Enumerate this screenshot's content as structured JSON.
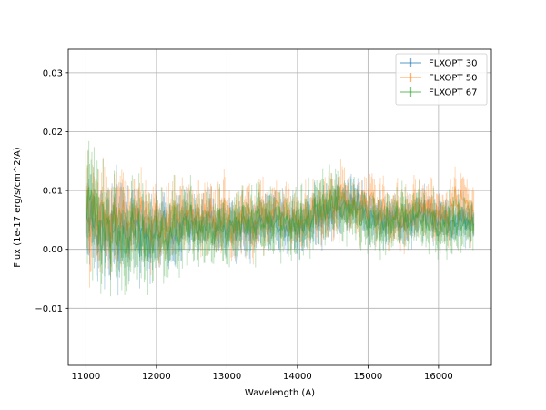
{
  "chart_data": {
    "type": "line",
    "xlabel": "Wavelength (A)",
    "ylabel": "Flux (1e-17 erg/s/cm^2/A)",
    "xlim": [
      10750,
      16750
    ],
    "ylim": [
      -0.0197,
      0.034
    ],
    "x_ticks": [
      11000,
      12000,
      13000,
      14000,
      15000,
      16000
    ],
    "x_tick_labels": [
      "11000",
      "12000",
      "13000",
      "14000",
      "15000",
      "16000"
    ],
    "y_ticks": [
      -0.01,
      0.0,
      0.01,
      0.02,
      0.03
    ],
    "y_tick_labels": [
      "−0.01",
      "0.00",
      "0.01",
      "0.02",
      "0.03"
    ],
    "grid": true,
    "legend": "upper-right",
    "series": [
      {
        "name": "FLXOPT 30",
        "color": "#1f77b4",
        "x": [
          11000,
          11250,
          11500,
          11750,
          12000,
          12250,
          12500,
          12750,
          13000,
          13250,
          13500,
          13750,
          14000,
          14250,
          14500,
          14750,
          15000,
          15250,
          15500,
          15750,
          16000,
          16250,
          16500
        ],
        "y": [
          0.006,
          0.003,
          0.002,
          0.004,
          0.003,
          0.004,
          0.004,
          0.004,
          0.004,
          0.004,
          0.005,
          0.005,
          0.004,
          0.006,
          0.007,
          0.008,
          0.006,
          0.005,
          0.005,
          0.006,
          0.005,
          0.005,
          0.005
        ],
        "y_spread": [
          0.008,
          0.008,
          0.009,
          0.007,
          0.006,
          0.006,
          0.005,
          0.005,
          0.005,
          0.005,
          0.005,
          0.005,
          0.005,
          0.005,
          0.005,
          0.005,
          0.004,
          0.004,
          0.004,
          0.004,
          0.004,
          0.004,
          0.004
        ]
      },
      {
        "name": "FLXOPT 50",
        "color": "#ff7f0e",
        "x": [
          11000,
          11250,
          11500,
          11750,
          12000,
          12250,
          12500,
          12750,
          13000,
          13250,
          13500,
          13750,
          14000,
          14250,
          14500,
          14750,
          15000,
          15250,
          15500,
          15750,
          16000,
          16250,
          16500
        ],
        "y": [
          0.005,
          0.006,
          0.005,
          0.005,
          0.004,
          0.005,
          0.006,
          0.005,
          0.005,
          0.005,
          0.006,
          0.006,
          0.005,
          0.006,
          0.008,
          0.008,
          0.007,
          0.006,
          0.006,
          0.007,
          0.006,
          0.008,
          0.008
        ],
        "y_spread": [
          0.009,
          0.009,
          0.008,
          0.007,
          0.007,
          0.006,
          0.006,
          0.006,
          0.006,
          0.006,
          0.006,
          0.005,
          0.005,
          0.005,
          0.006,
          0.005,
          0.005,
          0.005,
          0.005,
          0.005,
          0.005,
          0.005,
          0.005
        ]
      },
      {
        "name": "FLXOPT 67",
        "color": "#2ca02c",
        "x": [
          11000,
          11250,
          11500,
          11750,
          12000,
          12250,
          12500,
          12750,
          13000,
          13250,
          13500,
          13750,
          14000,
          14250,
          14500,
          14750,
          15000,
          15250,
          15500,
          15750,
          16000,
          16250,
          16500
        ],
        "y": [
          0.008,
          0.004,
          0.001,
          0.002,
          0.002,
          0.003,
          0.004,
          0.003,
          0.004,
          0.004,
          0.005,
          0.005,
          0.005,
          0.006,
          0.008,
          0.007,
          0.005,
          0.005,
          0.005,
          0.005,
          0.004,
          0.004,
          0.004
        ],
        "y_spread": [
          0.011,
          0.009,
          0.009,
          0.008,
          0.007,
          0.007,
          0.006,
          0.006,
          0.006,
          0.006,
          0.006,
          0.006,
          0.006,
          0.006,
          0.006,
          0.005,
          0.005,
          0.005,
          0.005,
          0.005,
          0.005,
          0.005,
          0.005
        ]
      }
    ]
  }
}
